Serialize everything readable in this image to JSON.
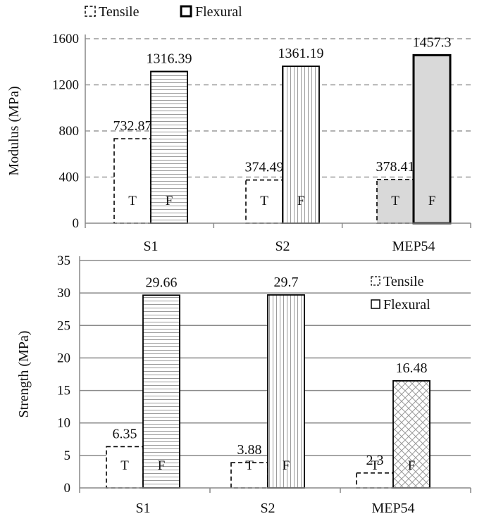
{
  "chart_data": [
    {
      "type": "bar",
      "categories": [
        "S1",
        "S2",
        "MEP54"
      ],
      "ylabel": "Modulus (MPa)",
      "ylim": [
        0,
        1600
      ],
      "yticks": [
        0,
        400,
        800,
        1200,
        1600
      ],
      "grid": true,
      "legend": "top-left",
      "series": [
        {
          "name": "Tensile",
          "values": [
            732.87,
            374.49,
            378.41
          ],
          "bar_letters": [
            "T",
            "T",
            "T"
          ]
        },
        {
          "name": "Flexural",
          "values": [
            1316.39,
            1361.19,
            1457.3
          ],
          "bar_letters": [
            "F",
            "F",
            "F"
          ]
        }
      ],
      "value_labels": [
        [
          "732.87",
          "374.49",
          "378.41"
        ],
        [
          "1316.39",
          "1361.19",
          "1457.3"
        ]
      ]
    },
    {
      "type": "bar",
      "categories": [
        "S1",
        "S2",
        "MEP54"
      ],
      "ylabel": "Strength (MPa)",
      "ylim": [
        0,
        35
      ],
      "yticks": [
        0,
        5,
        10,
        15,
        20,
        25,
        30,
        35
      ],
      "grid": true,
      "legend": "top-right",
      "series": [
        {
          "name": "Tensile",
          "values": [
            6.35,
            3.88,
            2.3
          ],
          "bar_letters": [
            "T",
            "T",
            "T"
          ]
        },
        {
          "name": "Flexural",
          "values": [
            29.66,
            29.7,
            16.48
          ],
          "bar_letters": [
            "F",
            "F",
            "F"
          ]
        }
      ],
      "value_labels": [
        [
          "6.35",
          "3.88",
          "2.3"
        ],
        [
          "29.66",
          "29.7",
          "16.48"
        ]
      ]
    }
  ]
}
